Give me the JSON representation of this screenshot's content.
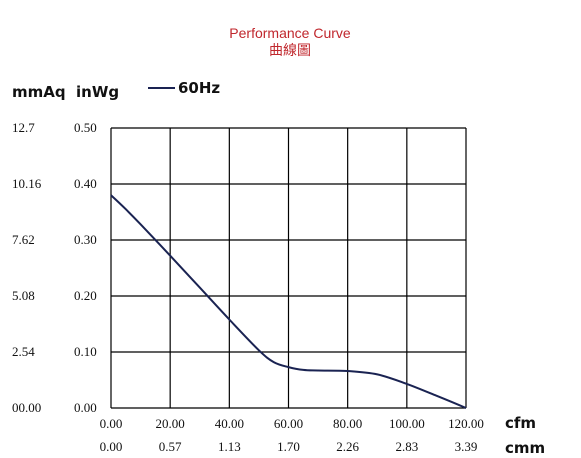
{
  "chart_data": {
    "type": "line",
    "title": "Performance Curve",
    "subtitle": "曲線圖",
    "y_units": [
      "mmAq",
      "inWg"
    ],
    "x_units": [
      "cfm",
      "cmm"
    ],
    "series": [
      {
        "name": "60Hz",
        "color": "#1a2352",
        "x": [
          0,
          5,
          10,
          20,
          30,
          40,
          50,
          55,
          60,
          65,
          70,
          80,
          90,
          100,
          110,
          120
        ],
        "y": [
          0.38,
          0.355,
          0.328,
          0.272,
          0.215,
          0.158,
          0.103,
          0.082,
          0.073,
          0.068,
          0.067,
          0.066,
          0.06,
          0.043,
          0.022,
          0.0
        ]
      }
    ],
    "x_ticks": [
      0,
      20,
      40,
      60,
      80,
      100,
      120
    ],
    "x_tick_labels": [
      "0.00",
      "20.00",
      "40.00",
      "60.00",
      "80.00",
      "100.00",
      "120.00"
    ],
    "x2_tick_labels": [
      "0.00",
      "0.57",
      "1.13",
      "1.70",
      "2.26",
      "2.83",
      "3.39"
    ],
    "y_ticks": [
      0,
      0.1,
      0.2,
      0.3,
      0.4,
      0.5
    ],
    "y_tick_labels": [
      "0.00",
      "0.10",
      "0.20",
      "0.30",
      "0.40",
      "0.50"
    ],
    "y2_tick_labels": [
      "00.00",
      "2.54",
      "5.08",
      "7.62",
      "10.16",
      "12.7"
    ],
    "xlim": [
      0,
      120
    ],
    "ylim": [
      0,
      0.5
    ],
    "grid": true,
    "legend_position": "top-left"
  }
}
